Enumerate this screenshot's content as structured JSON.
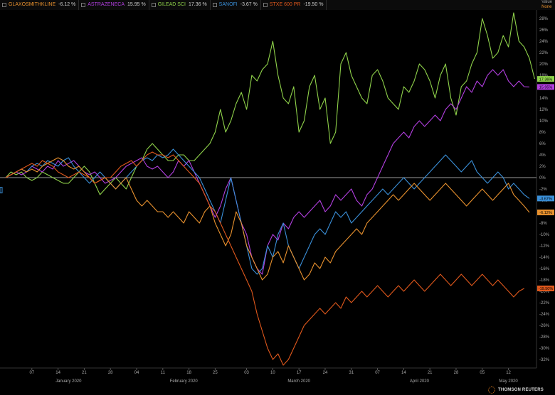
{
  "legend": [
    {
      "name": "GLAXOSMITHKLINE",
      "value": "-6.12 %",
      "color": "#e8912e"
    },
    {
      "name": "ASTRAZENECA",
      "value": "15.95 %",
      "color": "#b23fe0"
    },
    {
      "name": "GILEAD SCI",
      "value": "17.36 %",
      "color": "#8fd24a"
    },
    {
      "name": "SANOFI",
      "value": "-3.67 %",
      "color": "#3a8fd8"
    },
    {
      "name": "STXE 600 PR",
      "value": "-19.50 %",
      "color": "#e0581c"
    }
  ],
  "value_box": {
    "label": "Value",
    "sub": "None"
  },
  "logo_text": "THOMSON REUTERS",
  "chart_data": {
    "type": "line",
    "ylim": [
      -33,
      29
    ],
    "y_ticks": [
      -32,
      -30,
      -28,
      -26,
      -24,
      -22,
      -20,
      -18,
      -16,
      -14,
      -12,
      -10,
      -8,
      -6,
      -4,
      -2,
      0,
      2,
      4,
      6,
      8,
      10,
      12,
      14,
      16,
      18,
      20,
      22,
      24,
      26,
      28
    ],
    "x_ticks": [
      {
        "label": "07",
        "i": 5
      },
      {
        "label": "14",
        "i": 10
      },
      {
        "label": "21",
        "i": 15
      },
      {
        "label": "28",
        "i": 20
      },
      {
        "label": "04",
        "i": 25
      },
      {
        "label": "11",
        "i": 30
      },
      {
        "label": "18",
        "i": 35
      },
      {
        "label": "25",
        "i": 40
      },
      {
        "label": "03",
        "i": 46
      },
      {
        "label": "10",
        "i": 51
      },
      {
        "label": "17",
        "i": 56
      },
      {
        "label": "24",
        "i": 61
      },
      {
        "label": "31",
        "i": 66
      },
      {
        "label": "07",
        "i": 71
      },
      {
        "label": "14",
        "i": 76
      },
      {
        "label": "21",
        "i": 81
      },
      {
        "label": "28",
        "i": 86
      },
      {
        "label": "05",
        "i": 91
      },
      {
        "label": "12",
        "i": 96
      }
    ],
    "months": [
      {
        "label": "January 2020",
        "i": 12
      },
      {
        "label": "February 2020",
        "i": 34
      },
      {
        "label": "March 2020",
        "i": 56
      },
      {
        "label": "April 2020",
        "i": 79
      },
      {
        "label": "May 2020",
        "i": 96
      }
    ],
    "n_points": 101,
    "end_labels": [
      {
        "text": "17.36%",
        "value": 17.36,
        "color": "#8fd24a"
      },
      {
        "text": "15.95%",
        "value": 15.95,
        "color": "#b23fe0"
      },
      {
        "text": "-3.67%",
        "value": -3.67,
        "color": "#3a8fd8"
      },
      {
        "text": "-6.12%",
        "value": -6.12,
        "color": "#e8912e"
      },
      {
        "text": "-19.50%",
        "value": -19.5,
        "color": "#e0581c"
      }
    ],
    "series": [
      {
        "name": "GILEAD SCI",
        "color": "#8fd24a",
        "values": [
          0,
          1,
          0.5,
          1,
          0,
          -0.5,
          0,
          1,
          0.5,
          0,
          -0.5,
          -1,
          -1,
          0,
          1,
          2,
          1,
          -1,
          -3,
          -2,
          -1,
          0,
          -1,
          -2,
          0,
          2,
          3,
          5,
          6,
          5,
          4,
          3,
          3,
          4,
          4,
          3,
          3,
          4,
          5,
          6,
          8,
          12,
          8,
          10,
          13,
          15,
          12,
          18,
          17,
          19,
          20,
          24,
          18,
          14,
          13,
          16,
          8,
          10,
          16,
          18,
          12,
          14,
          6,
          8,
          20,
          22,
          18,
          16,
          14,
          13,
          18,
          19,
          17,
          14,
          13,
          12,
          16,
          15,
          17,
          20,
          19,
          17,
          14,
          18,
          20,
          14,
          11,
          16,
          17,
          20,
          22,
          28,
          25,
          21,
          22,
          25,
          23,
          29,
          24,
          23,
          21,
          17.36
        ]
      },
      {
        "name": "ASTRAZENECA",
        "color": "#b23fe0",
        "values": [
          0,
          0.5,
          1,
          0.5,
          1,
          2,
          1.5,
          1,
          2,
          1.5,
          3,
          2,
          2.5,
          3,
          2,
          1,
          0.5,
          1,
          0,
          -1,
          -0.5,
          0,
          1,
          2,
          2.5,
          3,
          3.5,
          2,
          1.5,
          2,
          1,
          0,
          1,
          3,
          2,
          3,
          1,
          -1,
          -3,
          -5,
          -7,
          -5,
          -2,
          0,
          -4,
          -8,
          -10,
          -14,
          -16,
          -17,
          -12,
          -10,
          -11,
          -8,
          -9,
          -7,
          -6,
          -7,
          -6,
          -5,
          -4,
          -6,
          -5,
          -3,
          -4,
          -3,
          -2,
          -4,
          -5,
          -3,
          -2,
          0,
          2,
          4,
          6,
          7,
          8,
          7,
          9,
          10,
          9,
          10,
          11,
          10,
          12,
          13,
          12,
          14,
          16,
          15,
          17,
          16,
          18,
          19,
          18,
          19,
          17,
          16,
          17,
          16,
          15.95
        ]
      },
      {
        "name": "SANOFI",
        "color": "#3a8fd8",
        "values": [
          0,
          0.5,
          1,
          1.5,
          1,
          2,
          2.5,
          2,
          3,
          2.5,
          2,
          3,
          3.5,
          2,
          1,
          0,
          -1,
          0,
          1,
          0,
          -1,
          -2,
          -1,
          0,
          1,
          2,
          3,
          3.5,
          3,
          4,
          3.5,
          4,
          5,
          4,
          3,
          2,
          1,
          0,
          -2,
          -4,
          -6,
          -8,
          -4,
          0,
          -4,
          -8,
          -12,
          -16,
          -17,
          -16,
          -12,
          -14,
          -10,
          -8,
          -12,
          -14,
          -16,
          -14,
          -12,
          -10,
          -9,
          -10,
          -8,
          -6,
          -7,
          -6,
          -8,
          -7,
          -6,
          -5,
          -4,
          -3,
          -2,
          -3,
          -2,
          -1,
          0,
          -1,
          -2,
          -1,
          0,
          1,
          2,
          3,
          4,
          3,
          2,
          1,
          2,
          3,
          1,
          0,
          -1,
          0,
          1,
          0,
          -2,
          -1,
          -2,
          -3,
          -3.67
        ]
      },
      {
        "name": "GLAXOSMITHKLINE",
        "color": "#e8912e",
        "values": [
          0,
          0.5,
          1,
          1.5,
          1,
          1.5,
          1,
          2,
          2.5,
          3,
          3.5,
          3,
          2,
          1.5,
          2,
          1,
          0,
          -1,
          -0.5,
          0,
          -1,
          -2,
          -1,
          0,
          -2,
          -4,
          -5,
          -4,
          -5,
          -6,
          -6,
          -7,
          -6,
          -7,
          -8,
          -6,
          -7,
          -8,
          -6,
          -5,
          -8,
          -10,
          -12,
          -10,
          -6,
          -8,
          -12,
          -14,
          -16,
          -18,
          -17,
          -14,
          -13,
          -15,
          -12,
          -14,
          -16,
          -18,
          -17,
          -15,
          -16,
          -14,
          -15,
          -13,
          -12,
          -11,
          -10,
          -9,
          -10,
          -8,
          -7,
          -6,
          -5,
          -4,
          -3,
          -4,
          -3,
          -2,
          -1,
          -2,
          -3,
          -4,
          -3,
          -2,
          -1,
          -2,
          -3,
          -4,
          -5,
          -4,
          -3,
          -2,
          -3,
          -4,
          -3,
          -2,
          -1,
          -3,
          -4,
          -5,
          -6.12
        ]
      },
      {
        "name": "STXE 600 PR",
        "color": "#e0581c",
        "values": [
          0,
          0.5,
          1,
          1.5,
          2,
          2.5,
          2,
          3,
          2.5,
          2,
          1,
          0.5,
          0,
          0.5,
          1,
          0.5,
          0,
          -1,
          -0.5,
          0,
          0,
          1,
          2,
          2.5,
          3,
          2,
          3,
          4,
          4.5,
          4,
          4,
          3.5,
          4,
          3,
          2,
          1,
          0,
          -1,
          -3,
          -5,
          -6,
          -8,
          -10,
          -12,
          -14,
          -16,
          -18,
          -20,
          -24,
          -27,
          -30,
          -32,
          -31,
          -33,
          -32,
          -30,
          -28,
          -26,
          -25,
          -24,
          -23,
          -24,
          -23,
          -22,
          -23,
          -21,
          -22,
          -21,
          -20,
          -21,
          -20,
          -19,
          -20,
          -21,
          -20,
          -19,
          -20,
          -19,
          -18,
          -19,
          -20,
          -19,
          -18,
          -17,
          -18,
          -19,
          -18,
          -17,
          -18,
          -19,
          -18,
          -17,
          -18,
          -19,
          -18,
          -19,
          -20,
          -21,
          -20,
          -19.5
        ]
      }
    ]
  }
}
